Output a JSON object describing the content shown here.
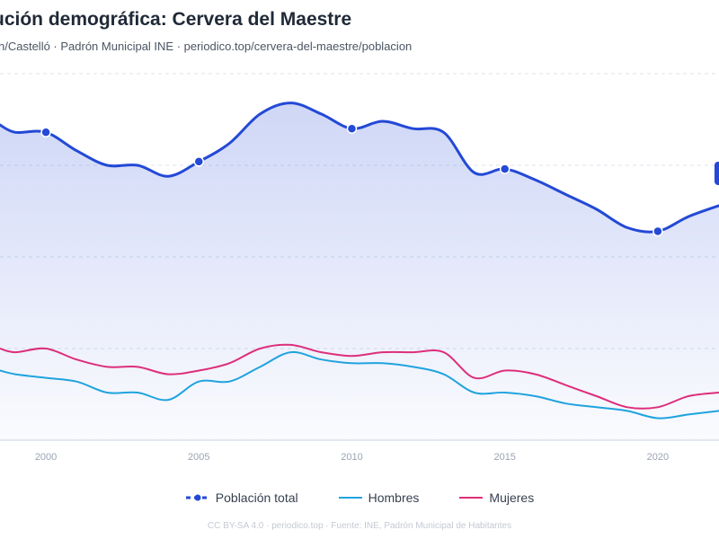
{
  "title": "ución demográfica: Cervera del Maestre",
  "subtitle": "n/Castelló · Padrón Municipal INE · periodico.top/cervera-del-maestre/poblacion",
  "footer": "CC BY-SA 4.0 · periodico.top · Fuente: INE, Padrón Municipal de Habitantes",
  "chart_data": {
    "type": "line",
    "title": "ución demográfica: Cervera del Maestre",
    "xlim": [
      1998.5,
      2022
    ],
    "ticks_x": [
      2000,
      2005,
      2010,
      2015,
      2020
    ],
    "ylim": [
      0,
      1
    ],
    "grid": true,
    "legend_position": "bottom",
    "x": [
      1998.5,
      1999,
      2000,
      2001,
      2002,
      2003,
      2004,
      2005,
      2006,
      2007,
      2008,
      2009,
      2010,
      2011,
      2012,
      2013,
      2014,
      2015,
      2016,
      2017,
      2018,
      2019,
      2020,
      2021,
      2022
    ],
    "series": [
      {
        "name": "Población total",
        "color": "#2349d6",
        "values": [
          0.86,
          0.84,
          0.84,
          0.79,
          0.75,
          0.75,
          0.72,
          0.76,
          0.81,
          0.89,
          0.92,
          0.89,
          0.85,
          0.87,
          0.85,
          0.84,
          0.73,
          0.74,
          0.71,
          0.67,
          0.63,
          0.58,
          0.57,
          0.61,
          0.64
        ],
        "markers": [
          2000,
          2005,
          2010,
          2015,
          2020
        ]
      },
      {
        "name": "Hombres",
        "color": "#1fa3de",
        "values": [
          0.19,
          0.18,
          0.17,
          0.16,
          0.13,
          0.13,
          0.11,
          0.16,
          0.16,
          0.2,
          0.24,
          0.22,
          0.21,
          0.21,
          0.2,
          0.18,
          0.13,
          0.13,
          0.12,
          0.1,
          0.09,
          0.08,
          0.06,
          0.07,
          0.08
        ]
      },
      {
        "name": "Mujeres",
        "color": "#dd2e7b",
        "values": [
          0.25,
          0.24,
          0.25,
          0.22,
          0.2,
          0.2,
          0.18,
          0.19,
          0.21,
          0.25,
          0.26,
          0.24,
          0.23,
          0.24,
          0.24,
          0.24,
          0.17,
          0.19,
          0.18,
          0.15,
          0.12,
          0.09,
          0.09,
          0.12,
          0.13
        ]
      }
    ]
  }
}
